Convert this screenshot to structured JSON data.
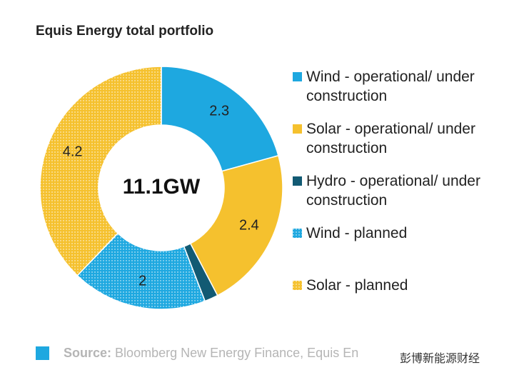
{
  "chart_data": {
    "type": "donut",
    "title": "Equis Energy total portfolio",
    "center_label": "11.1GW",
    "categories": [
      "Wind - operational/ under construction",
      "Solar - operational/ under construction",
      "Hydro - operational/ under construction",
      "Wind - planned",
      "Solar - planned"
    ],
    "values": [
      2.3,
      2.4,
      0.2,
      2,
      4.2
    ],
    "colors": [
      "#1ea8e0",
      "#f5c12e",
      "#125a73",
      "#1ea8e0",
      "#f5c12e"
    ],
    "dotted": [
      false,
      false,
      false,
      true,
      true
    ]
  },
  "source": {
    "label": "Source:",
    "text": "Bloomberg New Energy Finance, Equis En"
  },
  "watermark": "彭博新能源财经"
}
